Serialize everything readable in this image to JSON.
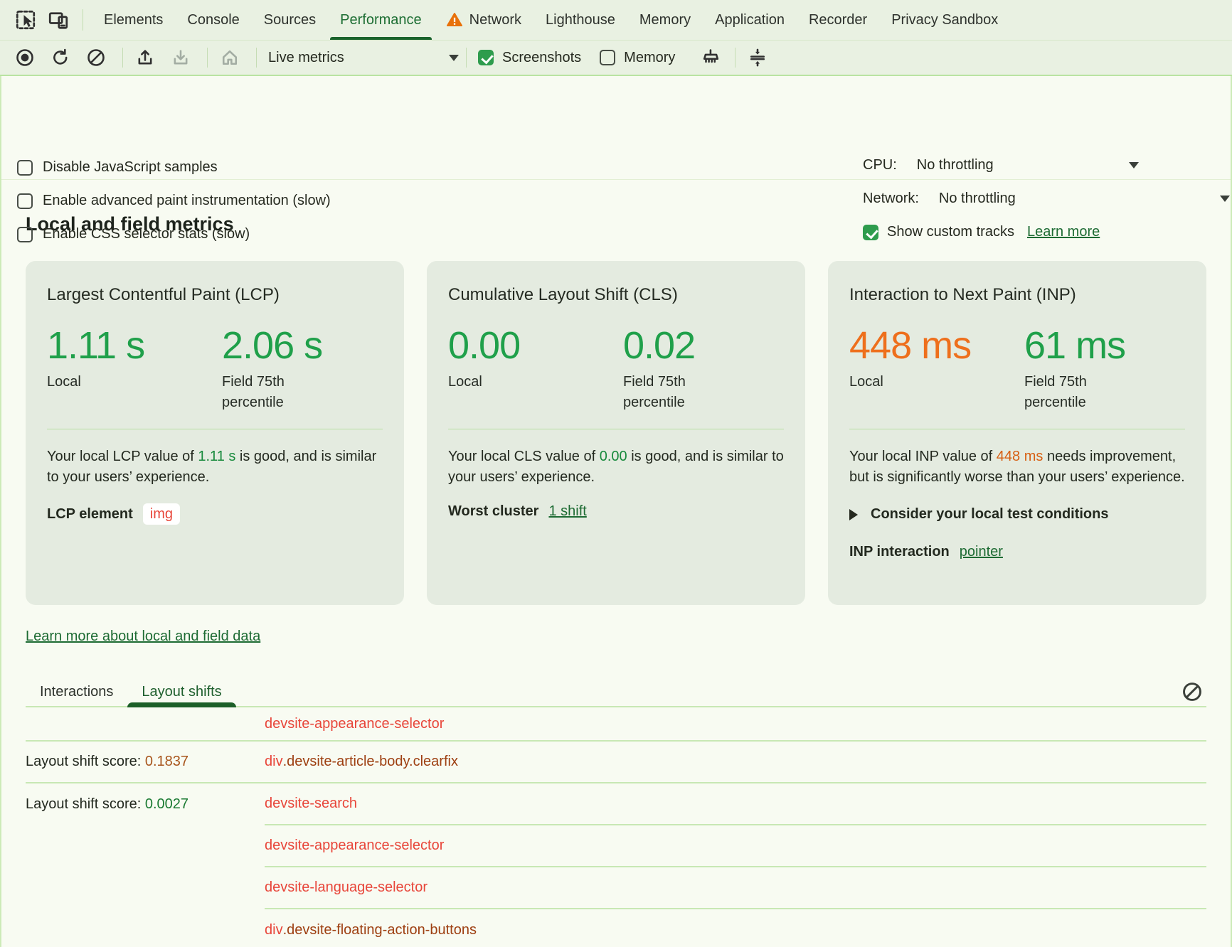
{
  "tabbar": {
    "tabs": [
      {
        "label": "Elements"
      },
      {
        "label": "Console"
      },
      {
        "label": "Sources"
      },
      {
        "label": "Performance",
        "active": true
      },
      {
        "label": "Network",
        "warning": true
      },
      {
        "label": "Lighthouse"
      },
      {
        "label": "Memory"
      },
      {
        "label": "Application"
      },
      {
        "label": "Recorder"
      },
      {
        "label": "Privacy Sandbox"
      }
    ]
  },
  "toolbar": {
    "live_metrics_label": "Live metrics",
    "screenshots": {
      "label": "Screenshots",
      "checked": true
    },
    "memory": {
      "label": "Memory",
      "checked": false
    }
  },
  "options": {
    "items": [
      {
        "label": "Disable JavaScript samples",
        "checked": false
      },
      {
        "label": "Enable advanced paint instrumentation (slow)",
        "checked": false
      },
      {
        "label": "Enable CSS selector stats (slow)",
        "checked": false
      }
    ],
    "cpu": {
      "label": "CPU:",
      "value": "No throttling"
    },
    "network": {
      "label": "Network:",
      "value": "No throttling"
    },
    "custom_tracks": {
      "label": "Show custom tracks",
      "checked": true,
      "link": "Learn more"
    }
  },
  "metrics": {
    "title": "Local and field metrics",
    "learn_more": "Learn more about local and field data",
    "cards": [
      {
        "title": "Largest Contentful Paint (LCP)",
        "local": {
          "value": "1.11 s",
          "label": "Local"
        },
        "field": {
          "value": "2.06 s",
          "label": "Field 75th percentile"
        },
        "desc": {
          "prefix": "Your local LCP value of ",
          "value": "1.11 s",
          "value_class": "inline-green",
          "suffix": " is good, and is similar to your users’ experience."
        },
        "row": {
          "label": "LCP element",
          "chip": "img"
        }
      },
      {
        "title": "Cumulative Layout Shift (CLS)",
        "local": {
          "value": "0.00",
          "label": "Local"
        },
        "field": {
          "value": "0.02",
          "label": "Field 75th percentile"
        },
        "desc": {
          "prefix": "Your local CLS value of ",
          "value": "0.00",
          "value_class": "inline-green",
          "suffix": " is good, and is similar to your users’ experience."
        },
        "row": {
          "label": "Worst cluster",
          "link": "1 shift"
        }
      },
      {
        "title": "Interaction to Next Paint (INP)",
        "local": {
          "value": "448 ms",
          "label": "Local"
        },
        "field": {
          "value": "61 ms",
          "label": "Field 75th percentile"
        },
        "desc": {
          "prefix": "Your local INP value of ",
          "value": "448 ms",
          "value_class": "inline-orange",
          "suffix": " needs improvement, but is significantly worse than your users’ experience."
        },
        "disclosure": "Consider your local test conditions",
        "row": {
          "label": "INP interaction",
          "link": "pointer"
        }
      }
    ]
  },
  "log": {
    "tabs": [
      {
        "label": "Interactions"
      },
      {
        "label": "Layout shifts",
        "active": true
      }
    ],
    "score_prefix": "Layout shift score: ",
    "rows": [
      {
        "selector_parts": [
          {
            "text": "devsite-appearance-selector",
            "style": "red"
          }
        ],
        "divider": "full"
      },
      {
        "score_label": "Layout shift score: ",
        "score_value": "0.1837",
        "score_style": "orange",
        "selector_parts": [
          {
            "text": "div",
            "style": "red"
          },
          {
            "text": ".devsite-article-body.clearfix",
            "style": "brown"
          }
        ],
        "divider": "full"
      },
      {
        "score_label": "Layout shift score: ",
        "score_value": "0.0027",
        "score_style": "green",
        "selector_parts": [
          {
            "text": "devsite-search",
            "style": "red"
          }
        ],
        "divider": "partial"
      },
      {
        "selector_parts": [
          {
            "text": "devsite-appearance-selector",
            "style": "red"
          }
        ],
        "divider": "partial"
      },
      {
        "selector_parts": [
          {
            "text": "devsite-language-selector",
            "style": "red"
          }
        ],
        "divider": "partial"
      },
      {
        "selector_parts": [
          {
            "text": "div",
            "style": "red"
          },
          {
            "text": ".devsite-floating-action-buttons",
            "style": "brown"
          }
        ],
        "divider": "none"
      }
    ]
  },
  "colors": {
    "accent_green": "#1fa04a",
    "accent_orange": "#ee6f1c",
    "link_green": "#1d6b33",
    "selector_red": "#e8463a",
    "selector_brown": "#9e4012"
  }
}
